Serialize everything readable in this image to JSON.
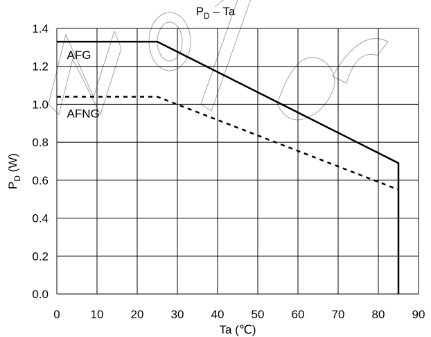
{
  "chart_data": {
    "type": "line",
    "title": {
      "main": "P",
      "sub": "D",
      "rest": " – Ta"
    },
    "xlabel": "Ta (℃)",
    "ylabel": {
      "main": "P",
      "sub": "D",
      "rest": " (W)"
    },
    "xlim": [
      0,
      90
    ],
    "ylim": [
      0,
      1.4
    ],
    "x_ticks": [
      "0",
      "10",
      "20",
      "30",
      "40",
      "50",
      "60",
      "70",
      "80",
      "90"
    ],
    "y_ticks": [
      "0.0",
      "0.2",
      "0.4",
      "0.6",
      "0.8",
      "1.0",
      "1.2",
      "1.4"
    ],
    "grid": true,
    "series": [
      {
        "name": "AFG",
        "style": "solid",
        "color": "#000000",
        "points": [
          [
            0,
            1.33
          ],
          [
            25,
            1.33
          ],
          [
            85,
            0.69
          ],
          [
            85,
            0.0
          ]
        ]
      },
      {
        "name": "AFNG",
        "style": "dashed",
        "color": "#000000",
        "points": [
          [
            0,
            1.04
          ],
          [
            25,
            1.04
          ],
          [
            85,
            0.55
          ]
        ]
      }
    ],
    "series_labels": [
      {
        "text": "AFG",
        "x": 2.5,
        "y": 1.24
      },
      {
        "text": "AFNG",
        "x": 2.5,
        "y": 0.93
      }
    ]
  }
}
